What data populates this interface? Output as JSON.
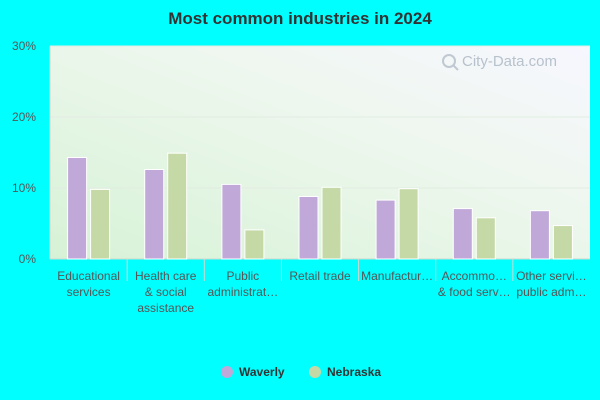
{
  "chart_data": {
    "type": "bar",
    "title": "Most common industries in 2024",
    "categories": [
      [
        "Educational",
        "services"
      ],
      [
        "Health care",
        "& social",
        "assistance"
      ],
      [
        "Public",
        "administrat…"
      ],
      [
        "Retail trade"
      ],
      [
        "Manufactur…"
      ],
      [
        "Accommo…",
        "& food serv…"
      ],
      [
        "Other servi…",
        "public adm…"
      ]
    ],
    "series": [
      {
        "name": "Waverly",
        "values": [
          14.3,
          12.6,
          10.5,
          8.8,
          8.3,
          7.1,
          6.8
        ],
        "color": "#c0a8d8"
      },
      {
        "name": "Nebraska",
        "values": [
          9.8,
          14.9,
          4.1,
          10.1,
          9.9,
          5.8,
          4.7
        ],
        "color": "#c5d9a6"
      }
    ],
    "yticks": [
      "0%",
      "10%",
      "20%",
      "30%"
    ],
    "ylim": [
      0,
      30
    ],
    "grid": true,
    "legend": "bottom-center",
    "watermark": "City-Data.com"
  }
}
